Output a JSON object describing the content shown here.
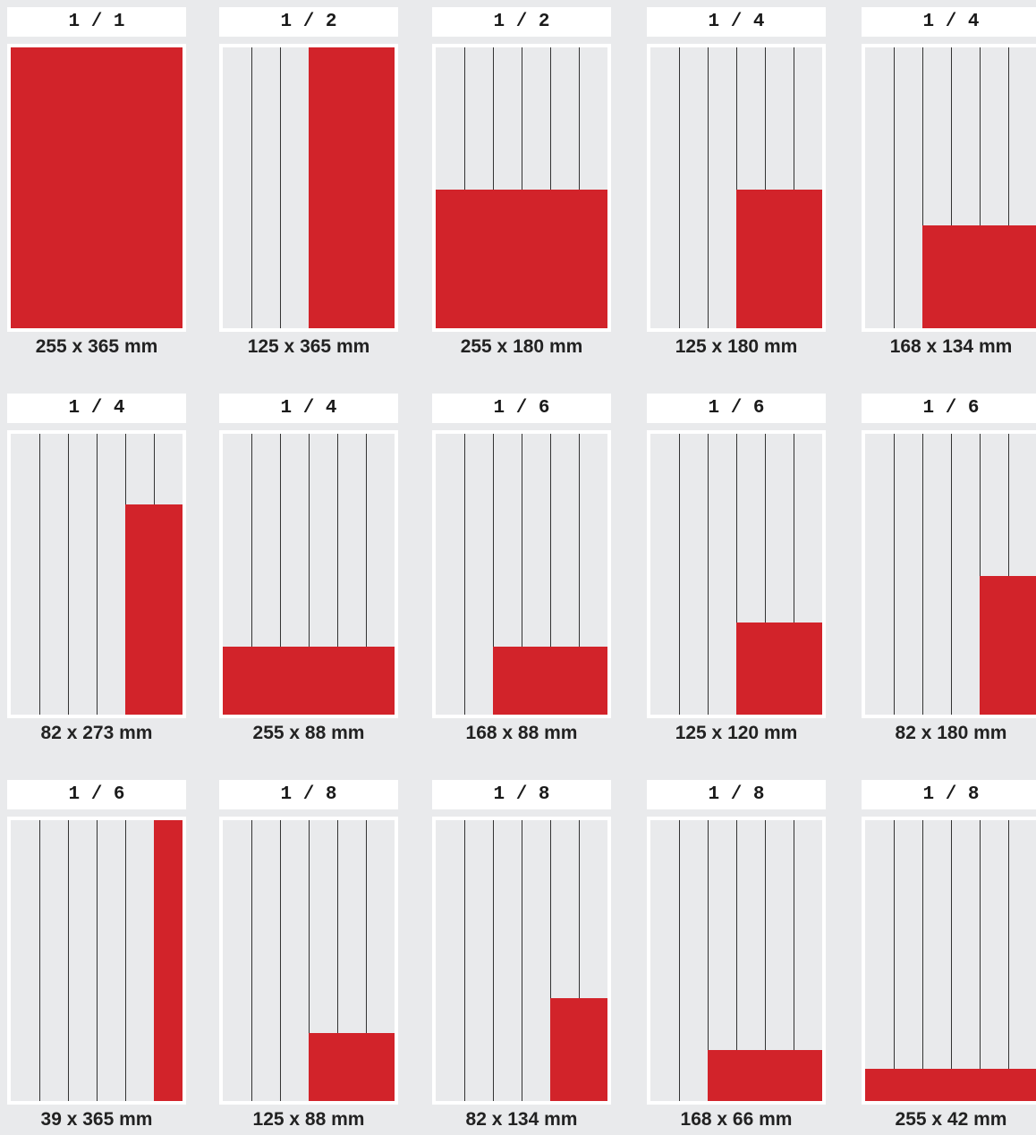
{
  "formats": [
    {
      "fraction": "1 / 1",
      "size": "255 x 365 mm",
      "col_start": 0,
      "col_span": 6,
      "height_pct": 100
    },
    {
      "fraction": "1 / 2",
      "size": "125 x 365 mm",
      "col_start": 3,
      "col_span": 3,
      "height_pct": 100
    },
    {
      "fraction": "1 / 2",
      "size": "255 x 180 mm",
      "col_start": 0,
      "col_span": 6,
      "height_pct": 49.3
    },
    {
      "fraction": "1 / 4",
      "size": "125 x 180 mm",
      "col_start": 3,
      "col_span": 3,
      "height_pct": 49.3
    },
    {
      "fraction": "1 / 4",
      "size": "168 x 134 mm",
      "col_start": 2,
      "col_span": 4,
      "height_pct": 36.7
    },
    {
      "fraction": "1 / 4",
      "size": "82 x 273 mm",
      "col_start": 4,
      "col_span": 2,
      "height_pct": 74.8
    },
    {
      "fraction": "1 / 4",
      "size": "255 x 88 mm",
      "col_start": 0,
      "col_span": 6,
      "height_pct": 24.1
    },
    {
      "fraction": "1 / 6",
      "size": "168 x 88 mm",
      "col_start": 2,
      "col_span": 4,
      "height_pct": 24.1
    },
    {
      "fraction": "1 / 6",
      "size": "125 x 120 mm",
      "col_start": 3,
      "col_span": 3,
      "height_pct": 32.9
    },
    {
      "fraction": "1 / 6",
      "size": "82 x 180 mm",
      "col_start": 4,
      "col_span": 2,
      "height_pct": 49.3
    },
    {
      "fraction": "1 / 6",
      "size": "39 x 365 mm",
      "col_start": 5,
      "col_span": 1,
      "height_pct": 100
    },
    {
      "fraction": "1 / 8",
      "size": "125 x 88 mm",
      "col_start": 3,
      "col_span": 3,
      "height_pct": 24.1
    },
    {
      "fraction": "1 / 8",
      "size": "82 x 134 mm",
      "col_start": 4,
      "col_span": 2,
      "height_pct": 36.7
    },
    {
      "fraction": "1 / 8",
      "size": "168 x 66 mm",
      "col_start": 2,
      "col_span": 4,
      "height_pct": 18.1
    },
    {
      "fraction": "1 / 8",
      "size": "255 x 42 mm",
      "col_start": 0,
      "col_span": 6,
      "height_pct": 11.5
    }
  ],
  "colors": {
    "ad_block": "#d2232a",
    "background": "#e9eaec",
    "frame": "#ffffff",
    "column_line": "#333333"
  }
}
